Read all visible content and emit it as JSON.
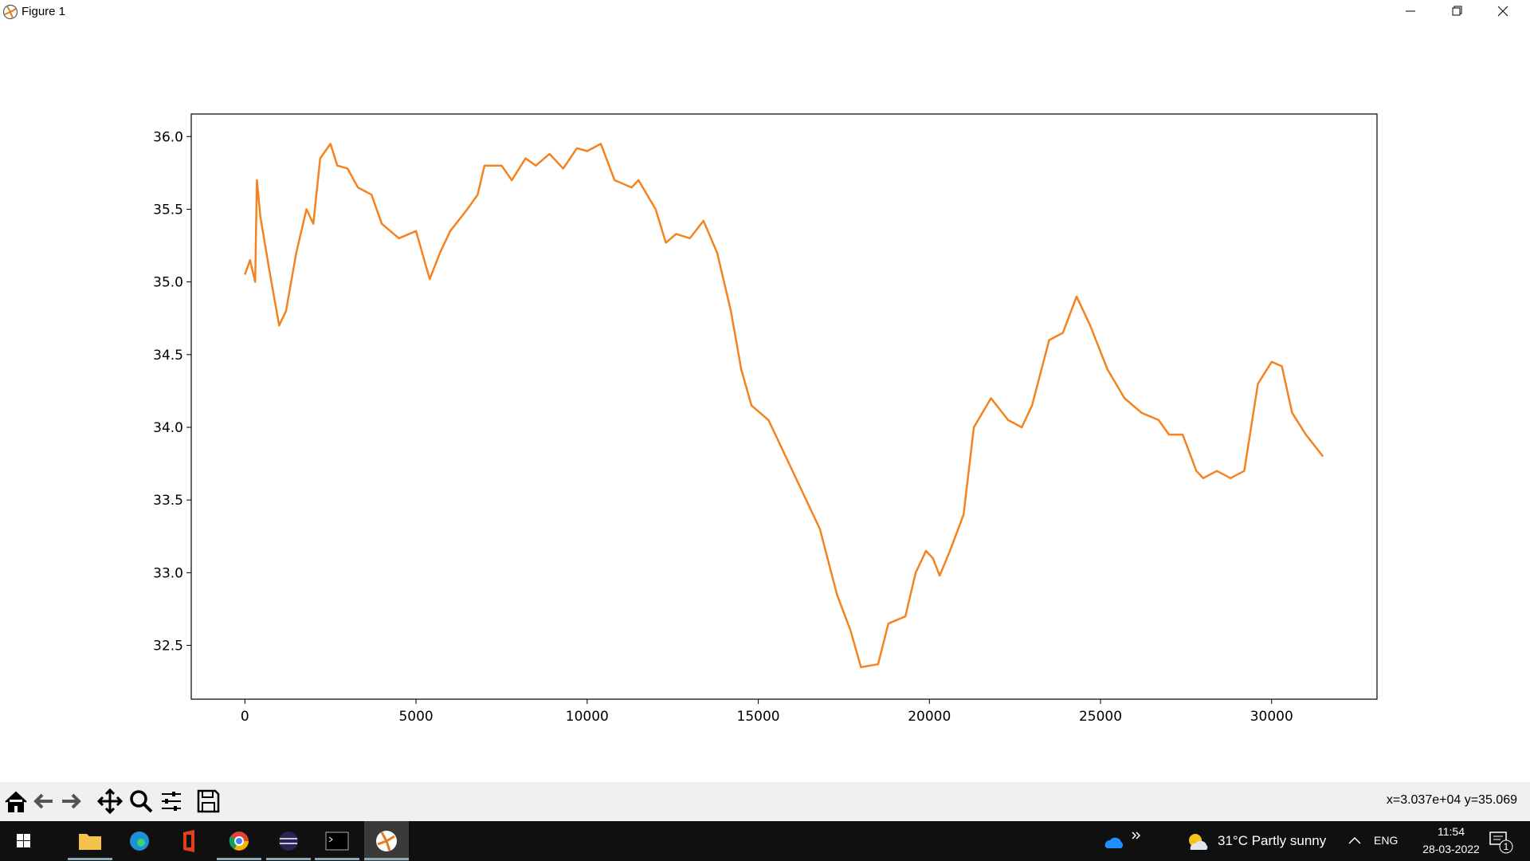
{
  "window": {
    "title": "Figure 1"
  },
  "chart_data": {
    "type": "line",
    "color": "#f5821f",
    "x": [
      0,
      150,
      300,
      350,
      450,
      700,
      1000,
      1200,
      1500,
      1800,
      2000,
      2200,
      2500,
      2700,
      3000,
      3300,
      3700,
      4000,
      4500,
      5000,
      5300,
      5400,
      5700,
      6000,
      6500,
      6800,
      7000,
      7500,
      7800,
      8200,
      8500,
      8900,
      9300,
      9700,
      10000,
      10400,
      10800,
      11300,
      11500,
      12000,
      12300,
      12600,
      13000,
      13400,
      13800,
      14200,
      14500,
      14800,
      15300,
      15800,
      16300,
      16800,
      17300,
      17700,
      18000,
      18500,
      18800,
      19300,
      19600,
      19900,
      20100,
      20300,
      20600,
      21000,
      21300,
      21800,
      22300,
      22700,
      23000,
      23500,
      23900,
      24300,
      24700,
      25200,
      25700,
      26200,
      26700,
      27000,
      27400,
      27800,
      28000,
      28400,
      28800,
      29200,
      29600,
      30000,
      30300,
      30600,
      31000,
      31500
    ],
    "values": [
      35.05,
      35.15,
      35.0,
      35.7,
      35.45,
      35.1,
      34.7,
      34.8,
      35.2,
      35.5,
      35.4,
      35.85,
      35.95,
      35.8,
      35.78,
      35.65,
      35.6,
      35.4,
      35.3,
      35.35,
      35.1,
      35.02,
      35.2,
      35.35,
      35.5,
      35.6,
      35.8,
      35.8,
      35.7,
      35.85,
      35.8,
      35.88,
      35.78,
      35.92,
      35.9,
      35.95,
      35.7,
      35.65,
      35.7,
      35.5,
      35.27,
      35.33,
      35.3,
      35.42,
      35.2,
      34.8,
      34.4,
      34.15,
      34.05,
      33.8,
      33.55,
      33.3,
      32.85,
      32.6,
      32.35,
      32.37,
      32.65,
      32.7,
      33.0,
      33.15,
      33.1,
      32.98,
      33.15,
      33.4,
      34.0,
      34.2,
      34.05,
      34.0,
      34.15,
      34.6,
      34.65,
      34.9,
      34.7,
      34.4,
      34.2,
      34.1,
      34.05,
      33.95,
      33.95,
      33.7,
      33.65,
      33.7,
      33.65,
      33.7,
      34.3,
      34.45,
      34.42,
      34.1,
      33.95,
      33.8
    ],
    "xlim": [
      -1568,
      33079
    ],
    "ylim": [
      32.13,
      36.155
    ],
    "xticks": [
      0,
      5000,
      10000,
      15000,
      20000,
      25000,
      30000
    ],
    "yticks": [
      32.5,
      {
        "value": 33,
        "label": "33.0"
      },
      33.5,
      {
        "value": 34,
        "label": "34.0"
      },
      34.5,
      {
        "value": 35,
        "label": "35.0"
      },
      35.5,
      {
        "value": 36,
        "label": "36.0"
      }
    ],
    "grid": false
  },
  "status": "x=3.037e+04 y=35.069",
  "taskbar": {
    "weather": "31°C Partly sunny",
    "language": "ENG",
    "time": "11:54",
    "date": "28-03-2022",
    "notifications": "1"
  }
}
